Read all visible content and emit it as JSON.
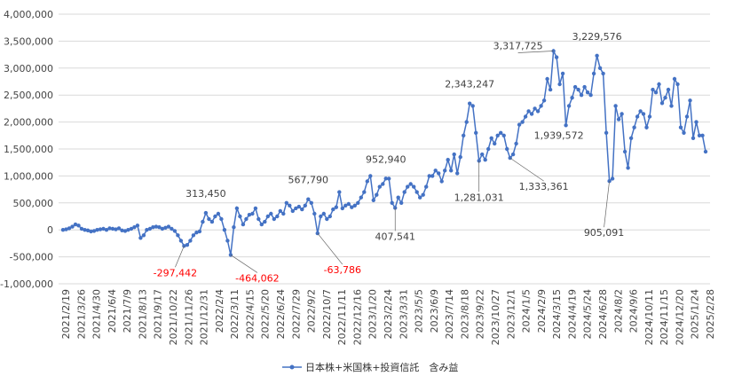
{
  "chart_data": {
    "type": "line",
    "title": "",
    "xlabel": "",
    "ylabel": "",
    "ylim": [
      -1000000,
      4000000
    ],
    "y_ticks": [
      {
        "value": 4000000,
        "label": "4,000,000"
      },
      {
        "value": 3500000,
        "label": "3,500,000"
      },
      {
        "value": 3000000,
        "label": "3,000,000"
      },
      {
        "value": 2500000,
        "label": "2,500,000"
      },
      {
        "value": 2000000,
        "label": "2,000,000"
      },
      {
        "value": 1500000,
        "label": "1,500,000"
      },
      {
        "value": 1000000,
        "label": "1,000,000"
      },
      {
        "value": 500000,
        "label": "500,000"
      },
      {
        "value": 0,
        "label": "0"
      },
      {
        "value": -500000,
        "label": "-500,000"
      },
      {
        "value": -1000000,
        "label": "-1,000,000"
      }
    ],
    "x_tick_labels": [
      "2021/2/19",
      "2021/3/26",
      "2021/4/30",
      "2021/6/4",
      "2021/7/9",
      "2021/8/13",
      "2021/9/17",
      "2021/10/22",
      "2021/11/26",
      "2021/12/31",
      "2022/2/4",
      "2022/3/11",
      "2022/4/15",
      "2022/5/20",
      "2022/6/24",
      "2022/7/29",
      "2022/9/2",
      "2022/10/7",
      "2022/11/11",
      "2022/12/16",
      "2023/1/20",
      "2023/2/24",
      "2023/3/31",
      "2023/5/5",
      "2023/6/9",
      "2023/7/14",
      "2023/8/18",
      "2023/9/22",
      "2023/10/27",
      "2023/12/1",
      "2024/1/5",
      "2024/2/9",
      "2024/3/15",
      "2024/4/19",
      "2024/5/24",
      "2024/6/28",
      "2024/8/2",
      "2024/9/6",
      "2024/10/11",
      "2024/11/15",
      "2024/12/20",
      "2025/1/24",
      "2025/2/28"
    ],
    "grid": true,
    "legend_position": "bottom",
    "colors": {
      "line": "#4472c4",
      "positive_label": "#404040",
      "negative_label": "#ff0000",
      "grid": "#d9d9d9"
    },
    "series": [
      {
        "name": "日本株+米国株+投資信託　含み益",
        "values": [
          0,
          10000,
          30000,
          60000,
          100000,
          80000,
          20000,
          0,
          -10000,
          -30000,
          -20000,
          0,
          10000,
          20000,
          0,
          30000,
          20000,
          10000,
          30000,
          -10000,
          -20000,
          0,
          20000,
          50000,
          80000,
          -150000,
          -100000,
          0,
          20000,
          50000,
          60000,
          50000,
          20000,
          40000,
          60000,
          20000,
          -20000,
          -100000,
          -200000,
          -297442,
          -280000,
          -200000,
          -100000,
          -50000,
          -30000,
          150000,
          313450,
          200000,
          150000,
          250000,
          300000,
          200000,
          0,
          -200000,
          -464062,
          50000,
          400000,
          250000,
          100000,
          200000,
          280000,
          300000,
          400000,
          200000,
          100000,
          150000,
          250000,
          300000,
          200000,
          250000,
          350000,
          300000,
          500000,
          450000,
          350000,
          400000,
          430000,
          380000,
          450000,
          567790,
          500000,
          300000,
          -63786,
          250000,
          300000,
          200000,
          250000,
          380000,
          420000,
          700000,
          400000,
          450000,
          480000,
          420000,
          450000,
          500000,
          600000,
          700000,
          900000,
          1000000,
          550000,
          650000,
          800000,
          850000,
          952940,
          950000,
          500000,
          407541,
          600000,
          500000,
          700000,
          800000,
          850000,
          800000,
          700000,
          600000,
          650000,
          800000,
          1000000,
          1000000,
          1100000,
          1050000,
          900000,
          1100000,
          1300000,
          1100000,
          1400000,
          1050000,
          1350000,
          1750000,
          2000000,
          2343247,
          2300000,
          1800000,
          1281031,
          1400000,
          1300000,
          1500000,
          1700000,
          1600000,
          1750000,
          1800000,
          1750000,
          1500000,
          1333361,
          1400000,
          1600000,
          1950000,
          2000000,
          2100000,
          2200000,
          2150000,
          2250000,
          2200000,
          2300000,
          2400000,
          2800000,
          2600000,
          3317725,
          3200000,
          2700000,
          2900000,
          1939572,
          2300000,
          2450000,
          2650000,
          2600000,
          2500000,
          2650000,
          2550000,
          2500000,
          2900000,
          3229576,
          3000000,
          2900000,
          1800000,
          905091,
          950000,
          2300000,
          2050000,
          2150000,
          1450000,
          1150000,
          1700000,
          1900000,
          2100000,
          2200000,
          2150000,
          1900000,
          2100000,
          2600000,
          2550000,
          2700000,
          2350000,
          2450000,
          2600000,
          2300000,
          2800000,
          2700000,
          1900000,
          1800000,
          2100000,
          2400000,
          1700000,
          2000000,
          1750000,
          1750000,
          1450000
        ]
      }
    ],
    "annotations": [
      {
        "index": 39,
        "text": "-297,442",
        "color": "negative"
      },
      {
        "index": 46,
        "text": "313,450",
        "color": "positive"
      },
      {
        "index": 54,
        "text": "-464,062",
        "color": "negative"
      },
      {
        "index": 79,
        "text": "567,790",
        "color": "positive"
      },
      {
        "index": 82,
        "text": "-63,786",
        "color": "negative"
      },
      {
        "index": 104,
        "text": "952,940",
        "color": "positive"
      },
      {
        "index": 107,
        "text": "407,541",
        "color": "positive"
      },
      {
        "index": 131,
        "text": "2,343,247",
        "color": "positive"
      },
      {
        "index": 134,
        "text": "1,281,031",
        "color": "positive"
      },
      {
        "index": 144,
        "text": "1,333,361",
        "color": "positive"
      },
      {
        "index": 158,
        "text": "3,317,725",
        "color": "positive"
      },
      {
        "index": 162,
        "text": "1,939,572",
        "color": "positive"
      },
      {
        "index": 172,
        "text": "3,229,576",
        "color": "positive"
      },
      {
        "index": 176,
        "text": "905,091",
        "color": "positive"
      }
    ]
  }
}
